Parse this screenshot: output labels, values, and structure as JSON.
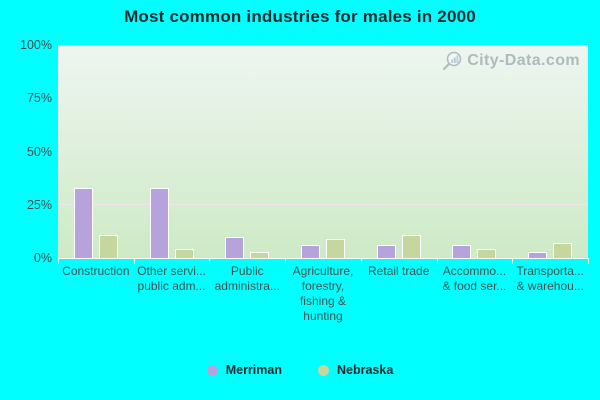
{
  "title": "Most common industries for males in 2000",
  "watermark": {
    "text": "City-Data.com"
  },
  "colors": {
    "background": "#00ffff",
    "merriman": "#b7a3dc",
    "nebraska": "#c5d69e",
    "bar_border": "#ffffff",
    "gridline": "#f4e0ee",
    "title_text": "#1f2a2e",
    "axis_text": "#3f4d4d"
  },
  "legend": {
    "position": "bottom-center",
    "items": [
      {
        "label": "Merriman",
        "color": "#b7a3dc"
      },
      {
        "label": "Nebraska",
        "color": "#c5d69e"
      }
    ]
  },
  "chart_data": {
    "type": "bar",
    "title": "Most common industries for males in 2000",
    "categories": [
      "Construction",
      "Other services, except public administration",
      "Public administration",
      "Agriculture, forestry, fishing & hunting",
      "Retail trade",
      "Accommodation & food services",
      "Transportation & warehousing"
    ],
    "categories_display": [
      [
        "Construction"
      ],
      [
        "Other servi...",
        "public adm..."
      ],
      [
        "Public",
        "administra..."
      ],
      [
        "Agriculture,",
        "forestry,",
        "fishing &",
        "hunting"
      ],
      [
        "Retail trade"
      ],
      [
        "Accommo...",
        "& food ser..."
      ],
      [
        "Transporta...",
        "& warehou..."
      ]
    ],
    "series": [
      {
        "name": "Merriman",
        "color": "#b7a3dc",
        "values": [
          33,
          33,
          10,
          6,
          6,
          6,
          3
        ]
      },
      {
        "name": "Nebraska",
        "color": "#c5d69e",
        "values": [
          11,
          4,
          3,
          9,
          11,
          4,
          7
        ]
      }
    ],
    "ylabel": "",
    "xlabel": "",
    "ylim": [
      0,
      100
    ],
    "yticks": [
      {
        "value": 100,
        "label": "100%"
      },
      {
        "value": 75,
        "label": "75%"
      },
      {
        "value": 50,
        "label": "50%"
      },
      {
        "value": 25,
        "label": "25%"
      },
      {
        "value": 0,
        "label": "0%"
      }
    ],
    "grid": "horizontal",
    "legend_position": "bottom"
  }
}
